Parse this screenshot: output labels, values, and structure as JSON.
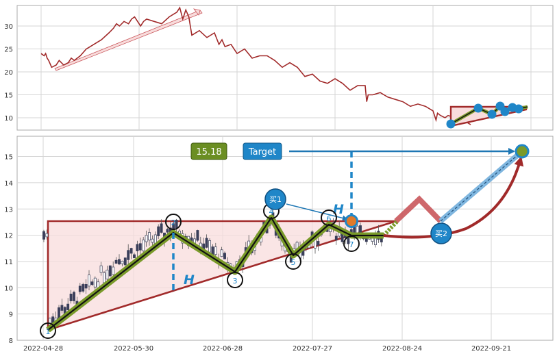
{
  "chart_data": [
    {
      "type": "line",
      "panel": "overview",
      "y_ticks": [
        10,
        15,
        20,
        25,
        30
      ],
      "ylim": [
        7.5,
        35
      ],
      "grid": true,
      "series": [
        {
          "color": "#a12a2a",
          "x": [
            0,
            2,
            3,
            4,
            5,
            7,
            10,
            12,
            15,
            18,
            20,
            22,
            26,
            30,
            35,
            40,
            45,
            48,
            50,
            52,
            55,
            58,
            60,
            62,
            64,
            66,
            68,
            70,
            75,
            80,
            85,
            90,
            92,
            94,
            96,
            98,
            100,
            105,
            110,
            115,
            118,
            120,
            122,
            126,
            130,
            135,
            140,
            145,
            150,
            155,
            160,
            165,
            170,
            175,
            180,
            185,
            190,
            195,
            200,
            205,
            210,
            215,
            216,
            217,
            220,
            225,
            230,
            235,
            240,
            245,
            250,
            255,
            260,
            262,
            263,
            265,
            268,
            270,
            275,
            280,
            285
          ],
          "values": [
            24.0,
            23.5,
            24.0,
            23.0,
            22.5,
            21.0,
            21.5,
            22.5,
            21.5,
            22.0,
            23.0,
            22.5,
            23.5,
            25.0,
            26.0,
            27.0,
            28.5,
            29.5,
            30.5,
            30.0,
            31.0,
            30.5,
            31.5,
            32.0,
            31.0,
            30.0,
            31.0,
            31.5,
            31.0,
            30.5,
            32.0,
            33.0,
            34.0,
            31.5,
            33.5,
            32.0,
            28.0,
            29.0,
            27.5,
            28.5,
            26.0,
            27.0,
            25.5,
            26.0,
            24.0,
            25.0,
            23.0,
            23.5,
            23.5,
            22.5,
            21.0,
            22.0,
            21.0,
            19.0,
            19.5,
            18.0,
            17.5,
            18.5,
            17.5,
            16.0,
            17.0,
            17.0,
            13.5,
            15.0,
            15.0,
            15.5,
            14.5,
            14.0,
            13.5,
            12.5,
            13.0,
            12.5,
            11.5,
            9.5,
            11.0,
            10.5,
            10.0,
            10.5,
            10.0,
            9.5,
            8.5
          ]
        }
      ]
    },
    {
      "type": "candlestick",
      "panel": "pattern",
      "ylim": [
        8,
        15.8
      ],
      "y_ticks": [
        8,
        9,
        10,
        11,
        12,
        13,
        14,
        15
      ],
      "x_tick_labels": [
        "2022-04-28",
        "2022-05-30",
        "2022-06-28",
        "2022-07-27",
        "2022-08-24",
        "2022-09-21"
      ],
      "grid": true,
      "badges": {
        "price": "15.18",
        "target": "Target"
      },
      "pattern_points": [
        {
          "label": "1",
          "value": 8.35
        },
        {
          "label": "2",
          "value": 12.5
        },
        {
          "label": "3",
          "value": 10.25
        },
        {
          "label": "4",
          "value": 12.9
        },
        {
          "label": "5",
          "value": 10.95
        },
        {
          "label": "6",
          "value": 12.6
        },
        {
          "label": "7",
          "value": 11.65
        }
      ],
      "signals": [
        {
          "label": "买1",
          "value": 12.5
        },
        {
          "label": "买2",
          "value": 12.05
        }
      ],
      "height_label": "H",
      "target_value": 15.18
    }
  ]
}
